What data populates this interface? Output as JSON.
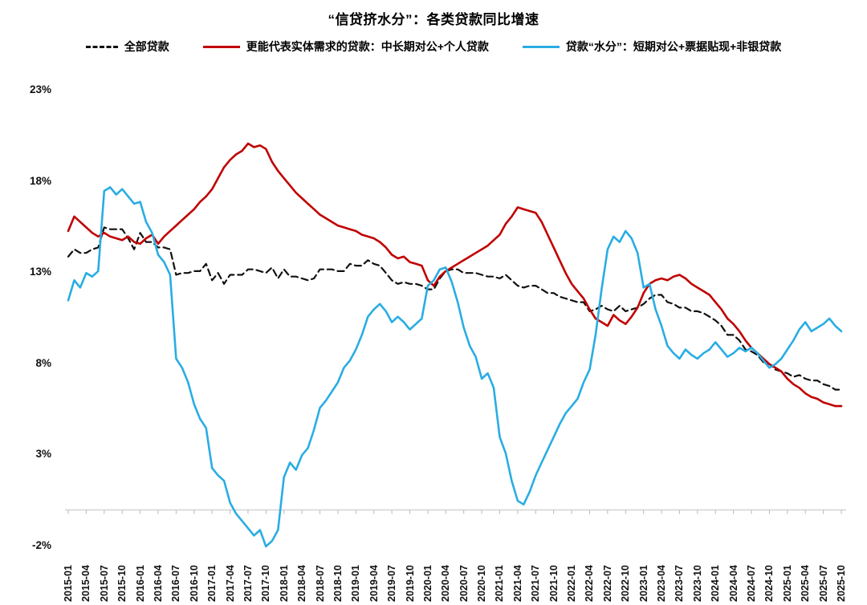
{
  "title": "“信贷挤水分”：各类贷款同比增速",
  "legend": [
    {
      "label": "全部贷款",
      "color": "#111111",
      "style": "dashed"
    },
    {
      "label": "更能代表实体需求的贷款：中长期对公+个人贷款",
      "color": "#c00000",
      "style": "solid"
    },
    {
      "label": "贷款“水分”：短期对公+票据贴现+非银贷款",
      "color": "#29ade3",
      "style": "solid"
    }
  ],
  "chart_data": {
    "type": "line",
    "title": "“信贷挤水分”：各类贷款同比增速",
    "unit": "%",
    "x_frequency": "monthly",
    "x_start": "2015-01",
    "x_end": "2025-10",
    "ylim": [
      -2,
      23
    ],
    "y_ticks": [
      "23%",
      "18%",
      "13%",
      "8%",
      "3%",
      "-2%"
    ],
    "grid": "zero-line-only",
    "legend_position": "top",
    "x_tick_labels": [
      "2015-01",
      "2015-04",
      "2015-07",
      "2015-10",
      "2016-01",
      "2016-04",
      "2016-07",
      "2016-10",
      "2017-01",
      "2017-04",
      "2017-07",
      "2017-10",
      "2018-01",
      "2018-04",
      "2018-07",
      "2018-10",
      "2019-01",
      "2019-04",
      "2019-07",
      "2019-10",
      "2020-01",
      "2020-04",
      "2020-07",
      "2020-10",
      "2021-01",
      "2021-04",
      "2021-07",
      "2021-10",
      "2022-01",
      "2022-04",
      "2022-07",
      "2022-10",
      "2023-01",
      "2023-04",
      "2023-07",
      "2023-10",
      "2024-01",
      "2024-04",
      "2024-07",
      "2024-10",
      "2025-01",
      "2025-04",
      "2025-07",
      "2025-10"
    ],
    "series": [
      {
        "name": "全部贷款",
        "color": "#111111",
        "dash": true,
        "values": [
          13.9,
          14.3,
          14.1,
          14.1,
          14.3,
          14.4,
          15.5,
          15.4,
          15.4,
          15.4,
          14.9,
          14.3,
          15.2,
          14.7,
          14.7,
          14.4,
          14.4,
          14.3,
          12.9,
          13.0,
          13.0,
          13.1,
          13.1,
          13.5,
          12.6,
          13.0,
          12.4,
          12.9,
          12.9,
          12.9,
          13.2,
          13.2,
          13.1,
          13.0,
          13.3,
          12.7,
          13.2,
          12.8,
          12.8,
          12.7,
          12.6,
          12.7,
          13.2,
          13.2,
          13.2,
          13.1,
          13.1,
          13.5,
          13.4,
          13.4,
          13.7,
          13.5,
          13.4,
          13.0,
          12.6,
          12.4,
          12.5,
          12.4,
          12.4,
          12.3,
          12.1,
          12.1,
          12.7,
          13.1,
          13.2,
          13.2,
          13.0,
          13.0,
          13.0,
          12.9,
          12.8,
          12.8,
          12.7,
          12.9,
          12.6,
          12.3,
          12.2,
          12.3,
          12.3,
          12.1,
          11.9,
          11.9,
          11.7,
          11.6,
          11.5,
          11.4,
          11.4,
          10.9,
          11.0,
          11.2,
          11.0,
          10.9,
          11.2,
          10.9,
          11.0,
          11.1,
          11.3,
          11.6,
          11.8,
          11.8,
          11.4,
          11.3,
          11.1,
          11.1,
          10.9,
          10.9,
          10.8,
          10.6,
          10.4,
          10.1,
          9.6,
          9.6,
          9.3,
          8.8,
          8.7,
          8.5,
          8.1,
          8.0,
          7.7,
          7.6,
          7.5,
          7.3,
          7.4,
          7.2,
          7.1,
          7.1,
          6.9,
          6.8,
          6.6,
          6.6
        ]
      },
      {
        "name": "更能代表实体需求的贷款：中长期对公+个人贷款",
        "color": "#c00000",
        "dash": false,
        "values": [
          15.3,
          16.1,
          15.8,
          15.5,
          15.2,
          15.0,
          15.2,
          15.0,
          14.9,
          14.8,
          15.0,
          14.7,
          14.6,
          14.9,
          15.1,
          14.6,
          15.0,
          15.3,
          15.6,
          15.9,
          16.2,
          16.5,
          16.9,
          17.2,
          17.6,
          18.2,
          18.8,
          19.2,
          19.5,
          19.7,
          20.1,
          19.9,
          20.0,
          19.8,
          19.1,
          18.6,
          18.2,
          17.8,
          17.4,
          17.1,
          16.8,
          16.5,
          16.2,
          16.0,
          15.8,
          15.6,
          15.5,
          15.4,
          15.3,
          15.1,
          15.0,
          14.9,
          14.7,
          14.4,
          14.0,
          13.8,
          13.9,
          13.6,
          13.5,
          13.4,
          12.6,
          12.3,
          12.8,
          13.1,
          13.3,
          13.5,
          13.7,
          13.9,
          14.1,
          14.3,
          14.5,
          14.8,
          15.1,
          15.7,
          16.1,
          16.6,
          16.5,
          16.4,
          16.3,
          15.8,
          15.1,
          14.4,
          13.7,
          13.0,
          12.4,
          12.0,
          11.6,
          11.0,
          10.5,
          10.3,
          10.1,
          10.7,
          10.4,
          10.2,
          10.6,
          11.1,
          11.9,
          12.4,
          12.6,
          12.7,
          12.6,
          12.8,
          12.9,
          12.7,
          12.4,
          12.2,
          12.0,
          11.8,
          11.4,
          11.0,
          10.5,
          10.2,
          9.8,
          9.3,
          8.9,
          8.6,
          8.3,
          8.0,
          7.8,
          7.6,
          7.2,
          6.9,
          6.7,
          6.4,
          6.2,
          6.1,
          5.9,
          5.8,
          5.7,
          5.7
        ]
      },
      {
        "name": "贷款“水分”：短期对公+票据贴现+非银贷款",
        "color": "#29ade3",
        "dash": false,
        "values": [
          11.5,
          12.6,
          12.2,
          13.0,
          12.8,
          13.1,
          17.5,
          17.7,
          17.3,
          17.6,
          17.2,
          16.8,
          16.9,
          15.8,
          15.2,
          14.0,
          13.6,
          12.9,
          8.3,
          7.8,
          7.0,
          5.8,
          5.0,
          4.5,
          2.3,
          1.9,
          1.6,
          0.4,
          -0.2,
          -0.6,
          -1.0,
          -1.4,
          -1.1,
          -2.0,
          -1.7,
          -1.1,
          1.8,
          2.6,
          2.2,
          3.0,
          3.4,
          4.4,
          5.6,
          6.0,
          6.5,
          7.0,
          7.8,
          8.2,
          8.8,
          9.6,
          10.6,
          11.0,
          11.3,
          10.9,
          10.3,
          10.6,
          10.3,
          9.9,
          10.2,
          10.5,
          12.3,
          12.6,
          13.2,
          13.3,
          12.5,
          11.4,
          10.0,
          9.0,
          8.4,
          7.2,
          7.5,
          6.7,
          4.0,
          3.1,
          1.6,
          0.5,
          0.3,
          1.0,
          1.9,
          2.6,
          3.3,
          4.0,
          4.7,
          5.3,
          5.7,
          6.1,
          7.0,
          7.7,
          9.6,
          12.1,
          14.3,
          15.0,
          14.7,
          15.3,
          14.9,
          14.1,
          12.2,
          12.4,
          11.0,
          10.1,
          9.0,
          8.6,
          8.3,
          8.8,
          8.5,
          8.3,
          8.6,
          8.8,
          9.2,
          8.8,
          8.4,
          8.6,
          8.9,
          8.7,
          8.9,
          8.6,
          8.2,
          7.8,
          8.0,
          8.3,
          8.8,
          9.3,
          9.9,
          10.3,
          9.8,
          10.0,
          10.2,
          10.5,
          10.1,
          9.8
        ]
      }
    ]
  }
}
